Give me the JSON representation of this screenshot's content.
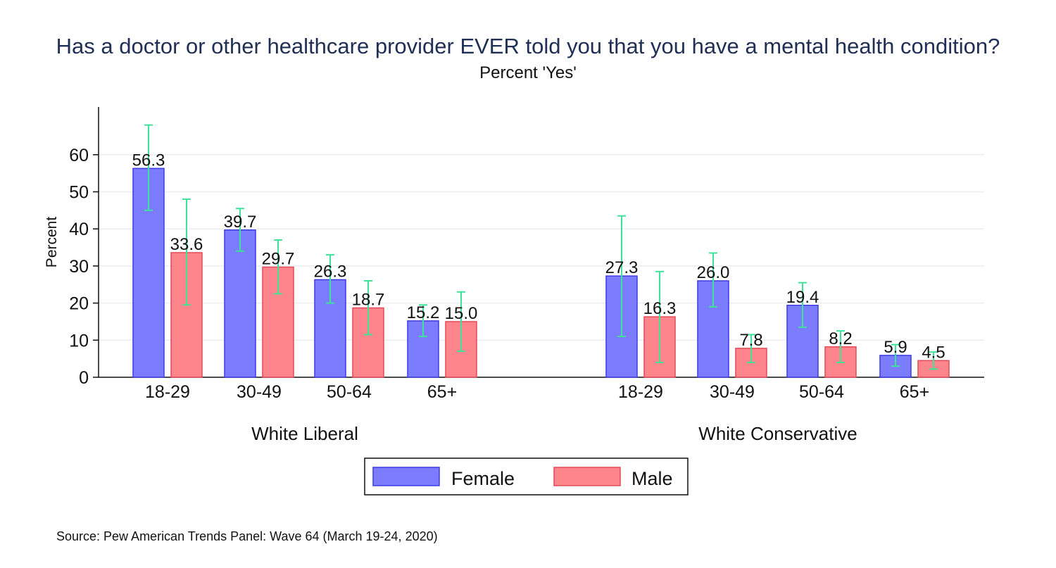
{
  "title": "Has a doctor or other healthcare provider EVER told you that you have a mental health condition?",
  "subtitle": "Percent 'Yes'",
  "source": "Source: Pew American Trends Panel: Wave 64 (March 19-24, 2020)",
  "colors": {
    "female": "#7b7cff",
    "female_edge": "#3c3ce0",
    "male": "#ff858c",
    "male_edge": "#e24b57",
    "error_bar": "#3ee39a"
  },
  "chart_data": {
    "type": "bar",
    "ylabel": "Percent",
    "ylim": [
      0,
      70
    ],
    "yticks": [
      0,
      10,
      20,
      30,
      40,
      50,
      60
    ],
    "grid": true,
    "legend": {
      "position": "bottom-center",
      "entries": [
        "Female",
        "Male"
      ]
    },
    "groups": [
      {
        "name": "White Liberal",
        "categories": [
          "18-29",
          "30-49",
          "50-64",
          "65+"
        ],
        "series": [
          {
            "name": "Female",
            "values": [
              56.3,
              39.7,
              26.3,
              15.2
            ],
            "ci_low": [
              45,
              34,
              20,
              11
            ],
            "ci_high": [
              68,
              45.5,
              33,
              19.5
            ]
          },
          {
            "name": "Male",
            "values": [
              33.6,
              29.7,
              18.7,
              15.0
            ],
            "ci_low": [
              19.5,
              22.5,
              11.5,
              7
            ],
            "ci_high": [
              48,
              37,
              26,
              23
            ]
          }
        ]
      },
      {
        "name": "White Conservative",
        "categories": [
          "18-29",
          "30-49",
          "50-64",
          "65+"
        ],
        "series": [
          {
            "name": "Female",
            "values": [
              27.3,
              26.0,
              19.4,
              5.9
            ],
            "ci_low": [
              11,
              19,
              13.5,
              3
            ],
            "ci_high": [
              43.5,
              33.5,
              25.5,
              8.8
            ]
          },
          {
            "name": "Male",
            "values": [
              16.3,
              7.8,
              8.2,
              4.5
            ],
            "ci_low": [
              4,
              4,
              4,
              2.2
            ],
            "ci_high": [
              28.5,
              11.5,
              12.5,
              6.8
            ]
          }
        ]
      }
    ],
    "value_labels": [
      [
        "56.3",
        "39.7",
        "26.3",
        "15.2"
      ],
      [
        "33.6",
        "29.7",
        "18.7",
        "15.0"
      ],
      [
        "27.3",
        "26.0",
        "19.4",
        "5.9"
      ],
      [
        "16.3",
        "7.8",
        "8.2",
        "4.5"
      ]
    ]
  }
}
